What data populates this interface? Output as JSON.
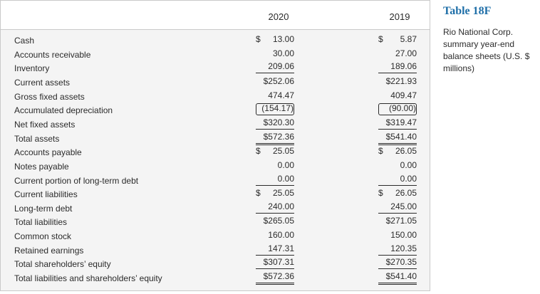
{
  "table": {
    "headers": {
      "y2020": "2020",
      "y2019": "2019"
    },
    "rows": [
      {
        "label": "Cash",
        "v2020": "13.00",
        "cur2020": "$",
        "v2019": "5.87",
        "cur2019": "$",
        "u": ""
      },
      {
        "label": "Accounts receivable",
        "v2020": "30.00",
        "cur2020": "",
        "v2019": "27.00",
        "cur2019": "",
        "u": ""
      },
      {
        "label": "Inventory",
        "v2020": "209.06",
        "cur2020": "",
        "v2019": "189.06",
        "cur2019": "",
        "u": "u"
      },
      {
        "label": "Current assets",
        "v2020": "$252.06",
        "cur2020": "",
        "v2019": "$221.93",
        "cur2019": "",
        "u": ""
      },
      {
        "label": "Gross fixed assets",
        "v2020": "474.47",
        "cur2020": "",
        "v2019": "409.47",
        "cur2019": "",
        "u": ""
      },
      {
        "label": "Accumulated depreciation",
        "v2020": "(154.17)",
        "cur2020": "",
        "v2019": "(90.00)",
        "cur2019": "",
        "u": "paren"
      },
      {
        "label": "Net fixed assets",
        "v2020": "$320.30",
        "cur2020": "",
        "v2019": "$319.47",
        "cur2019": "",
        "u": "u"
      },
      {
        "label": "Total assets",
        "v2020": "$572.36",
        "cur2020": "",
        "v2019": "$541.40",
        "cur2019": "",
        "u": "du"
      },
      {
        "label": "Accounts payable",
        "v2020": "25.05",
        "cur2020": "$",
        "v2019": "26.05",
        "cur2019": "$",
        "u": ""
      },
      {
        "label": "Notes payable",
        "v2020": "0.00",
        "cur2020": "",
        "v2019": "0.00",
        "cur2019": "",
        "u": ""
      },
      {
        "label": "Current portion of long-term debt",
        "v2020": "0.00",
        "cur2020": "",
        "v2019": "0.00",
        "cur2019": "",
        "u": "u"
      },
      {
        "label": "Current liabilities",
        "v2020": "25.05",
        "cur2020": "$",
        "v2019": "26.05",
        "cur2019": "$",
        "u": ""
      },
      {
        "label": "Long-term debt",
        "v2020": "240.00",
        "cur2020": "",
        "v2019": "245.00",
        "cur2019": "",
        "u": "u"
      },
      {
        "label": "Total liabilities",
        "v2020": "$265.05",
        "cur2020": "",
        "v2019": "$271.05",
        "cur2019": "",
        "u": ""
      },
      {
        "label": "Common stock",
        "v2020": "160.00",
        "cur2020": "",
        "v2019": "150.00",
        "cur2019": "",
        "u": ""
      },
      {
        "label": "Retained earnings",
        "v2020": "147.31",
        "cur2020": "",
        "v2019": "120.35",
        "cur2019": "",
        "u": "u"
      },
      {
        "label": "Total shareholders’ equity",
        "v2020": "$307.31",
        "cur2020": "",
        "v2019": "$270.35",
        "cur2019": "",
        "u": "u"
      },
      {
        "label": "Total liabilities and shareholders’ equity",
        "v2020": "$572.36",
        "cur2020": "",
        "v2019": "$541.40",
        "cur2019": "",
        "u": "du"
      }
    ]
  },
  "side": {
    "title": "Table 18F",
    "caption": "Rio National Corp. summary year-end balance sheets (U.S. $ millions)"
  },
  "colors": {
    "accent": "#1f6fa8"
  }
}
